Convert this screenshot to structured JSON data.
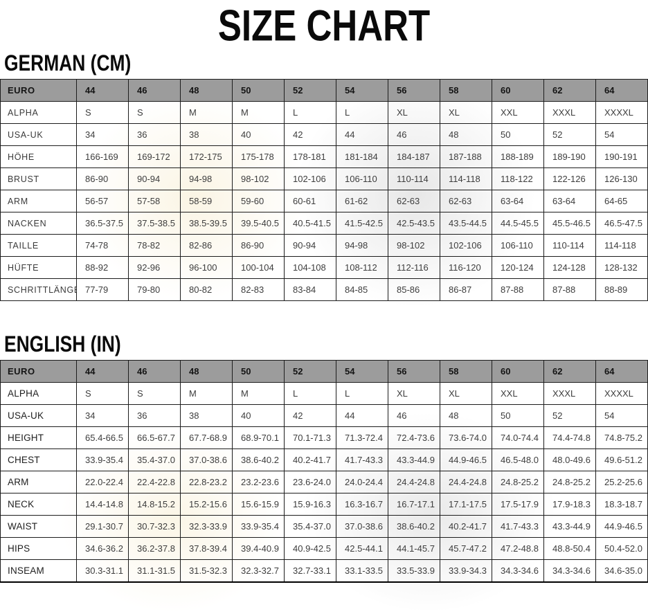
{
  "page_title": "SIZE CHART",
  "colors": {
    "header_bg": "#9c9c9c",
    "border": "#1c1c1c",
    "body_text": "#3d3d3d",
    "heading_text": "#0a0a0a",
    "background": "#ffffff"
  },
  "tables": [
    {
      "heading": "GERMAN (CM)",
      "header": {
        "label": "EURO",
        "values": [
          "44",
          "46",
          "48",
          "50",
          "52",
          "54",
          "56",
          "58",
          "60",
          "62",
          "64"
        ]
      },
      "rows": [
        {
          "label": "ALPHA",
          "values": [
            "S",
            "S",
            "M",
            "M",
            "L",
            "L",
            "XL",
            "XL",
            "XXL",
            "XXXL",
            "XXXXL"
          ]
        },
        {
          "label": "USA-UK",
          "values": [
            "34",
            "36",
            "38",
            "40",
            "42",
            "44",
            "46",
            "48",
            "50",
            "52",
            "54"
          ]
        },
        {
          "label": "HÖHE",
          "values": [
            "166-169",
            "169-172",
            "172-175",
            "175-178",
            "178-181",
            "181-184",
            "184-187",
            "187-188",
            "188-189",
            "189-190",
            "190-191"
          ]
        },
        {
          "label": "BRUST",
          "values": [
            "86-90",
            "90-94",
            "94-98",
            "98-102",
            "102-106",
            "106-110",
            "110-114",
            "114-118",
            "118-122",
            "122-126",
            "126-130"
          ]
        },
        {
          "label": "ARM",
          "values": [
            "56-57",
            "57-58",
            "58-59",
            "59-60",
            "60-61",
            "61-62",
            "62-63",
            "62-63",
            "63-64",
            "63-64",
            "64-65"
          ]
        },
        {
          "label": "NACKEN",
          "values": [
            "36.5-37.5",
            "37.5-38.5",
            "38.5-39.5",
            "39.5-40.5",
            "40.5-41.5",
            "41.5-42.5",
            "42.5-43.5",
            "43.5-44.5",
            "44.5-45.5",
            "45.5-46.5",
            "46.5-47.5"
          ]
        },
        {
          "label": "TAILLE",
          "values": [
            "74-78",
            "78-82",
            "82-86",
            "86-90",
            "90-94",
            "94-98",
            "98-102",
            "102-106",
            "106-110",
            "110-114",
            "114-118"
          ]
        },
        {
          "label": "HÜFTE",
          "values": [
            "88-92",
            "92-96",
            "96-100",
            "100-104",
            "104-108",
            "108-112",
            "112-116",
            "116-120",
            "120-124",
            "124-128",
            "128-132"
          ]
        },
        {
          "label": "SCHRITTLÄNGE",
          "values": [
            "77-79",
            "79-80",
            "80-82",
            "82-83",
            "83-84",
            "84-85",
            "85-86",
            "86-87",
            "87-88",
            "87-88",
            "88-89"
          ]
        }
      ]
    },
    {
      "heading": "ENGLISH (IN)",
      "header": {
        "label": "EURO",
        "values": [
          "44",
          "46",
          "48",
          "50",
          "52",
          "54",
          "56",
          "58",
          "60",
          "62",
          "64"
        ]
      },
      "rows": [
        {
          "label": "ALPHA",
          "values": [
            "S",
            "S",
            "M",
            "M",
            "L",
            "L",
            "XL",
            "XL",
            "XXL",
            "XXXL",
            "XXXXL"
          ]
        },
        {
          "label": "USA-UK",
          "values": [
            "34",
            "36",
            "38",
            "40",
            "42",
            "44",
            "46",
            "48",
            "50",
            "52",
            "54"
          ]
        },
        {
          "label": "HEIGHT",
          "values": [
            "65.4-66.5",
            "66.5-67.7",
            "67.7-68.9",
            "68.9-70.1",
            "70.1-71.3",
            "71.3-72.4",
            "72.4-73.6",
            "73.6-74.0",
            "74.0-74.4",
            "74.4-74.8",
            "74.8-75.2"
          ]
        },
        {
          "label": "CHEST",
          "values": [
            "33.9-35.4",
            "35.4-37.0",
            "37.0-38.6",
            "38.6-40.2",
            "40.2-41.7",
            "41.7-43.3",
            "43.3-44.9",
            "44.9-46.5",
            "46.5-48.0",
            "48.0-49.6",
            "49.6-51.2"
          ]
        },
        {
          "label": "ARM",
          "values": [
            "22.0-22.4",
            "22.4-22.8",
            "22.8-23.2",
            "23.2-23.6",
            "23.6-24.0",
            "24.0-24.4",
            "24.4-24.8",
            "24.4-24.8",
            "24.8-25.2",
            "24.8-25.2",
            "25.2-25.6"
          ]
        },
        {
          "label": "NECK",
          "values": [
            "14.4-14.8",
            "14.8-15.2",
            "15.2-15.6",
            "15.6-15.9",
            "15.9-16.3",
            "16.3-16.7",
            "16.7-17.1",
            "17.1-17.5",
            "17.5-17.9",
            "17.9-18.3",
            "18.3-18.7"
          ]
        },
        {
          "label": "WAIST",
          "values": [
            "29.1-30.7",
            "30.7-32.3",
            "32.3-33.9",
            "33.9-35.4",
            "35.4-37.0",
            "37.0-38.6",
            "38.6-40.2",
            "40.2-41.7",
            "41.7-43.3",
            "43.3-44.9",
            "44.9-46.5"
          ]
        },
        {
          "label": "HIPS",
          "values": [
            "34.6-36.2",
            "36.2-37.8",
            "37.8-39.4",
            "39.4-40.9",
            "40.9-42.5",
            "42.5-44.1",
            "44.1-45.7",
            "45.7-47.2",
            "47.2-48.8",
            "48.8-50.4",
            "50.4-52.0"
          ]
        },
        {
          "label": "INSEAM",
          "values": [
            "30.3-31.1",
            "31.1-31.5",
            "31.5-32.3",
            "32.3-32.7",
            "32.7-33.1",
            "33.1-33.5",
            "33.5-33.9",
            "33.9-34.3",
            "34.3-34.6",
            "34.3-34.6",
            "34.6-35.0"
          ]
        }
      ]
    }
  ]
}
